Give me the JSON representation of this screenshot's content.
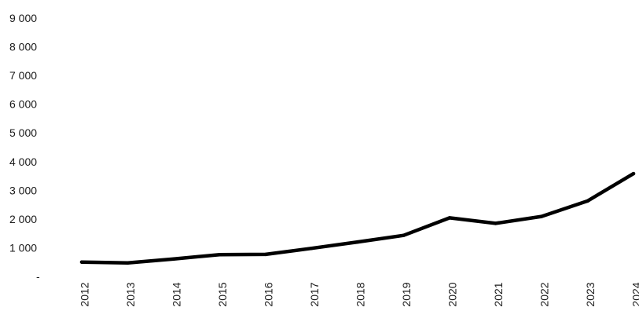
{
  "chart_data": {
    "type": "line",
    "title": "",
    "xlabel": "",
    "ylabel": "",
    "x": [
      "2012",
      "2013",
      "2014",
      "2015",
      "2016",
      "2017",
      "2018",
      "2019",
      "2020",
      "2021",
      "2022",
      "2023",
      "2024"
    ],
    "series": [
      {
        "values": [
          500,
          470,
          610,
          760,
          770,
          980,
          1200,
          1430,
          2040,
          1850,
          2090,
          2630,
          3580
        ],
        "color": "#000000"
      }
    ],
    "ylim": [
      0,
      9000
    ],
    "y_ticks": [
      {
        "value": 0,
        "label": "-"
      },
      {
        "value": 1000,
        "label": "1 000"
      },
      {
        "value": 2000,
        "label": "2 000"
      },
      {
        "value": 3000,
        "label": "3 000"
      },
      {
        "value": 4000,
        "label": "4 000"
      },
      {
        "value": 5000,
        "label": "5 000"
      },
      {
        "value": 6000,
        "label": "6 000"
      },
      {
        "value": 7000,
        "label": "7 000"
      },
      {
        "value": 8000,
        "label": "8 000"
      },
      {
        "value": 9000,
        "label": "9 000"
      }
    ],
    "x_tick_rotation": "vertical",
    "grid": false,
    "legend": "none"
  }
}
